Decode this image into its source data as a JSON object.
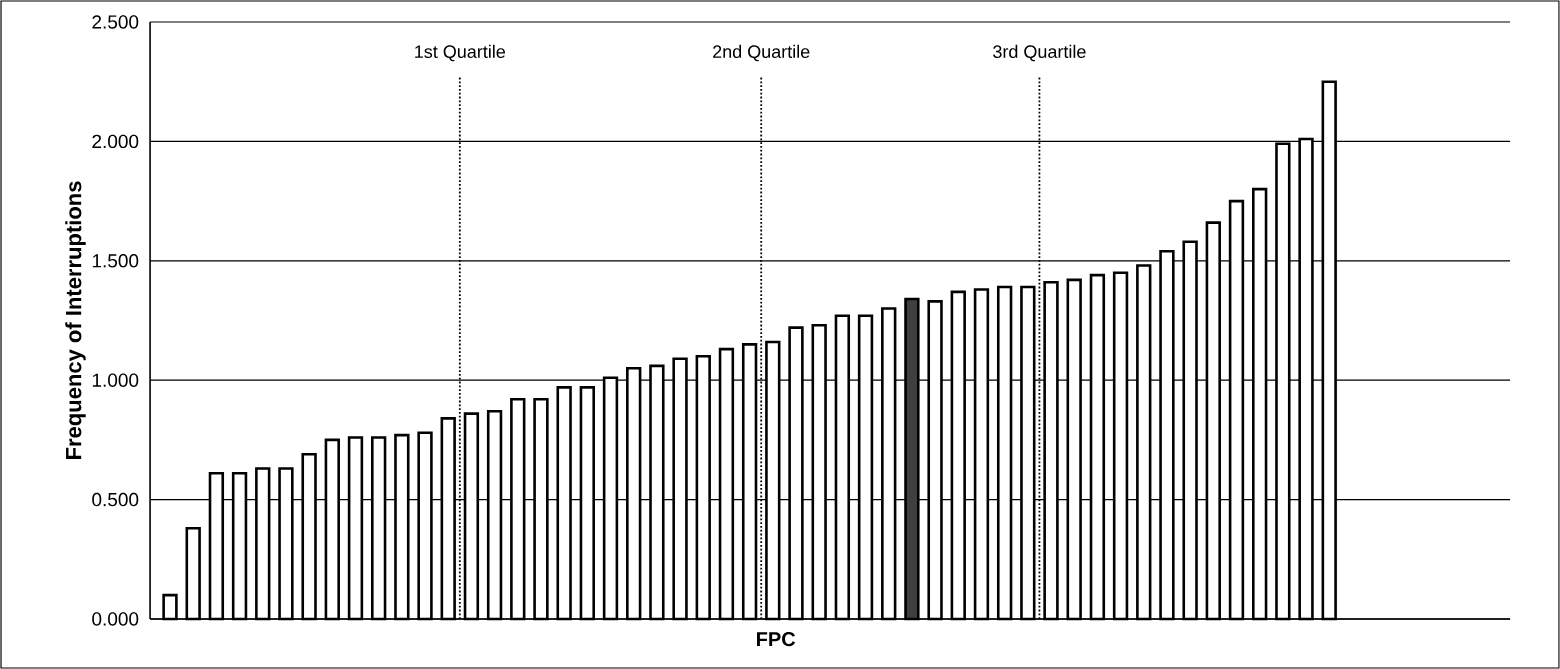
{
  "chart_data": {
    "type": "bar",
    "xlabel": "FPC",
    "ylabel": "Frequency of Interruptions",
    "categories": [
      null,
      null,
      null,
      null,
      null,
      null,
      null,
      null,
      null,
      null,
      null,
      null,
      null,
      null,
      null,
      null,
      null,
      null,
      null,
      null,
      null,
      null,
      null,
      null,
      null,
      null,
      null,
      null,
      null,
      null,
      null,
      null,
      null,
      null,
      null,
      null,
      null,
      null,
      null,
      null,
      null,
      null,
      null,
      null,
      null,
      null,
      null,
      null,
      null,
      null,
      null
    ],
    "values": [
      0.1,
      0.38,
      0.61,
      0.61,
      0.63,
      0.63,
      0.69,
      0.75,
      0.76,
      0.76,
      0.77,
      0.78,
      0.84,
      0.86,
      0.87,
      0.92,
      0.92,
      0.97,
      0.97,
      1.01,
      1.05,
      1.06,
      1.09,
      1.1,
      1.13,
      1.15,
      1.16,
      1.22,
      1.23,
      1.27,
      1.27,
      1.3,
      1.34,
      1.33,
      1.37,
      1.38,
      1.39,
      1.39,
      1.41,
      1.42,
      1.44,
      1.45,
      1.48,
      1.54,
      1.58,
      1.66,
      1.75,
      1.8,
      1.99,
      2.01,
      2.25
    ],
    "colors": [
      "#ffffff",
      "#ffffff",
      "#ffffff",
      "#ffffff",
      "#ffffff",
      "#ffffff",
      "#ffffff",
      "#ffffff",
      "#ffffff",
      "#ffffff",
      "#ffffff",
      "#ffffff",
      "#ffffff",
      "#ffffff",
      "#ffffff",
      "#ffffff",
      "#ffffff",
      "#ffffff",
      "#ffffff",
      "#ffffff",
      "#ffffff",
      "#ffffff",
      "#ffffff",
      "#ffffff",
      "#ffffff",
      "#ffffff",
      "#ffffff",
      "#ffffff",
      "#ffffff",
      "#ffffff",
      "#ffffff",
      "#ffffff",
      "#404040",
      "#ffffff",
      "#ffffff",
      "#ffffff",
      "#ffffff",
      "#ffffff",
      "#ffffff",
      "#ffffff",
      "#ffffff",
      "#ffffff",
      "#ffffff",
      "#ffffff",
      "#ffffff",
      "#ffffff",
      "#ffffff",
      "#ffffff",
      "#ffffff",
      "#ffffff",
      "#ffffff"
    ],
    "ylim": [
      0,
      2.5
    ],
    "yticks": [
      {
        "value": 0,
        "label": "0.000"
      },
      {
        "value": 0.5,
        "label": "0.500"
      },
      {
        "value": 1,
        "label": "1.000"
      },
      {
        "value": 1.5,
        "label": "1.500"
      },
      {
        "value": 2,
        "label": "2.000"
      },
      {
        "value": 2.5,
        "label": "2.500"
      }
    ],
    "grid": "y",
    "annotations": [
      "1st Quartile",
      "2nd Quartile",
      "3rd Quartile"
    ]
  }
}
